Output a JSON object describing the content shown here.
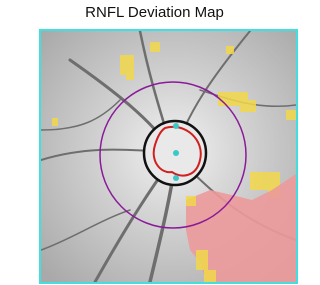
{
  "title": "RNFL Deviation Map"
}
